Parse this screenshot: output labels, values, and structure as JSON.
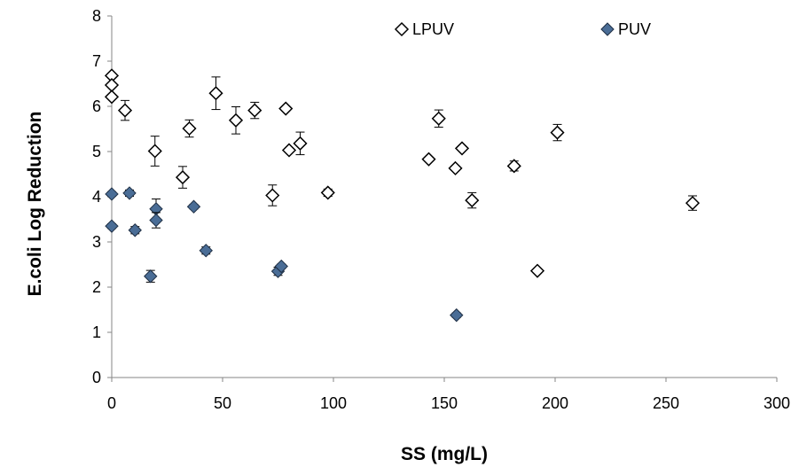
{
  "chart_data": {
    "type": "scatter",
    "title": "",
    "xlabel": "SS (mg/L)",
    "ylabel": "E.coli Log Reduction",
    "xlim": [
      0,
      300
    ],
    "ylim": [
      0,
      8
    ],
    "x_ticks": [
      0,
      50,
      100,
      150,
      200,
      250,
      300
    ],
    "y_ticks": [
      0,
      1,
      2,
      3,
      4,
      5,
      6,
      7,
      8
    ],
    "grid": false,
    "legend_position": "top-right",
    "series": [
      {
        "name": "LPUV",
        "marker": "diamond-open",
        "color": "#000000",
        "points": [
          {
            "x": 0,
            "y": 6.68,
            "err": 0.05
          },
          {
            "x": 0,
            "y": 6.47,
            "err": 0.05
          },
          {
            "x": 0,
            "y": 6.21,
            "err": 0.05
          },
          {
            "x": 6,
            "y": 5.91,
            "err": 0.22
          },
          {
            "x": 19.5,
            "y": 5.01,
            "err": 0.33
          },
          {
            "x": 32,
            "y": 4.43,
            "err": 0.24
          },
          {
            "x": 35,
            "y": 5.51,
            "err": 0.19
          },
          {
            "x": 47,
            "y": 6.29,
            "err": 0.36
          },
          {
            "x": 56,
            "y": 5.69,
            "err": 0.3
          },
          {
            "x": 64.5,
            "y": 5.91,
            "err": 0.18
          },
          {
            "x": 72.5,
            "y": 4.03,
            "err": 0.23
          },
          {
            "x": 78.5,
            "y": 5.95,
            "err": 0.05
          },
          {
            "x": 80,
            "y": 5.03,
            "err": 0.05
          },
          {
            "x": 85,
            "y": 5.18,
            "err": 0.25
          },
          {
            "x": 97.5,
            "y": 4.09,
            "err": 0.08
          },
          {
            "x": 143,
            "y": 4.83,
            "err": 0.05
          },
          {
            "x": 147.5,
            "y": 5.73,
            "err": 0.19
          },
          {
            "x": 155,
            "y": 4.63,
            "err": 0.05
          },
          {
            "x": 158,
            "y": 5.07,
            "err": 0.05
          },
          {
            "x": 162.5,
            "y": 3.92,
            "err": 0.17
          },
          {
            "x": 181.5,
            "y": 4.68,
            "err": 0.11
          },
          {
            "x": 192,
            "y": 2.36,
            "err": 0.05
          },
          {
            "x": 201,
            "y": 5.42,
            "err": 0.18
          },
          {
            "x": 262,
            "y": 3.86,
            "err": 0.16
          }
        ]
      },
      {
        "name": "PUV",
        "marker": "diamond-filled",
        "color": "#4A6D96",
        "points": [
          {
            "x": 0,
            "y": 4.06,
            "err": 0.05
          },
          {
            "x": 0,
            "y": 3.35,
            "err": 0.05
          },
          {
            "x": 8,
            "y": 4.08,
            "err": 0.07
          },
          {
            "x": 10.5,
            "y": 3.26,
            "err": 0.08
          },
          {
            "x": 17.5,
            "y": 2.24,
            "err": 0.13
          },
          {
            "x": 20,
            "y": 3.73,
            "err": 0.22
          },
          {
            "x": 20,
            "y": 3.48,
            "err": 0.17
          },
          {
            "x": 37,
            "y": 3.78,
            "err": 0.05
          },
          {
            "x": 42.5,
            "y": 2.81,
            "err": 0.08
          },
          {
            "x": 75,
            "y": 2.35,
            "err": 0.09
          },
          {
            "x": 76.5,
            "y": 2.46,
            "err": 0.05
          },
          {
            "x": 155.5,
            "y": 1.38,
            "err": 0.05
          }
        ]
      }
    ]
  }
}
